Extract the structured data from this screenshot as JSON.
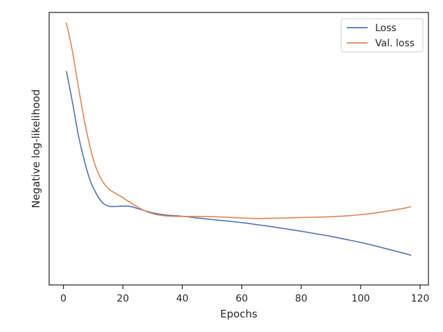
{
  "chart_data": {
    "type": "line",
    "xlabel": "Epochs",
    "ylabel": "Negative log-likelihood",
    "xlim": [
      -4.8,
      122.8
    ],
    "ylim": [
      -0.3,
      10.4
    ],
    "xticks": [
      0,
      20,
      40,
      60,
      80,
      100,
      120
    ],
    "yticks_shown": false,
    "grid": false,
    "legend_position": "top-right",
    "series": [
      {
        "name": "Loss",
        "color": "#4c72b0",
        "x": [
          1,
          3,
          5,
          7,
          9,
          11,
          13,
          15,
          17,
          19,
          21,
          23,
          25,
          27,
          30,
          33,
          36,
          40,
          45,
          50,
          55,
          60,
          65,
          70,
          75,
          80,
          85,
          90,
          95,
          100,
          105,
          110,
          115,
          117
        ],
        "y": [
          8.1,
          6.9,
          5.6,
          4.6,
          3.8,
          3.3,
          2.95,
          2.8,
          2.78,
          2.79,
          2.8,
          2.77,
          2.7,
          2.63,
          2.53,
          2.47,
          2.43,
          2.4,
          2.33,
          2.27,
          2.21,
          2.15,
          2.07,
          1.99,
          1.9,
          1.81,
          1.71,
          1.61,
          1.49,
          1.37,
          1.23,
          1.08,
          0.93,
          0.86
        ]
      },
      {
        "name": "Val. loss",
        "color": "#dd8452",
        "x": [
          1,
          3,
          5,
          7,
          9,
          11,
          13,
          15,
          17,
          19,
          21,
          23,
          25,
          27,
          30,
          33,
          36,
          40,
          45,
          50,
          55,
          60,
          65,
          70,
          75,
          80,
          85,
          90,
          95,
          100,
          105,
          110,
          115,
          117
        ],
        "y": [
          10.0,
          8.9,
          7.5,
          6.2,
          5.1,
          4.3,
          3.8,
          3.5,
          3.33,
          3.2,
          3.05,
          2.9,
          2.76,
          2.63,
          2.5,
          2.43,
          2.4,
          2.39,
          2.39,
          2.38,
          2.36,
          2.33,
          2.31,
          2.32,
          2.33,
          2.35,
          2.36,
          2.38,
          2.41,
          2.46,
          2.53,
          2.62,
          2.72,
          2.78
        ]
      }
    ]
  }
}
